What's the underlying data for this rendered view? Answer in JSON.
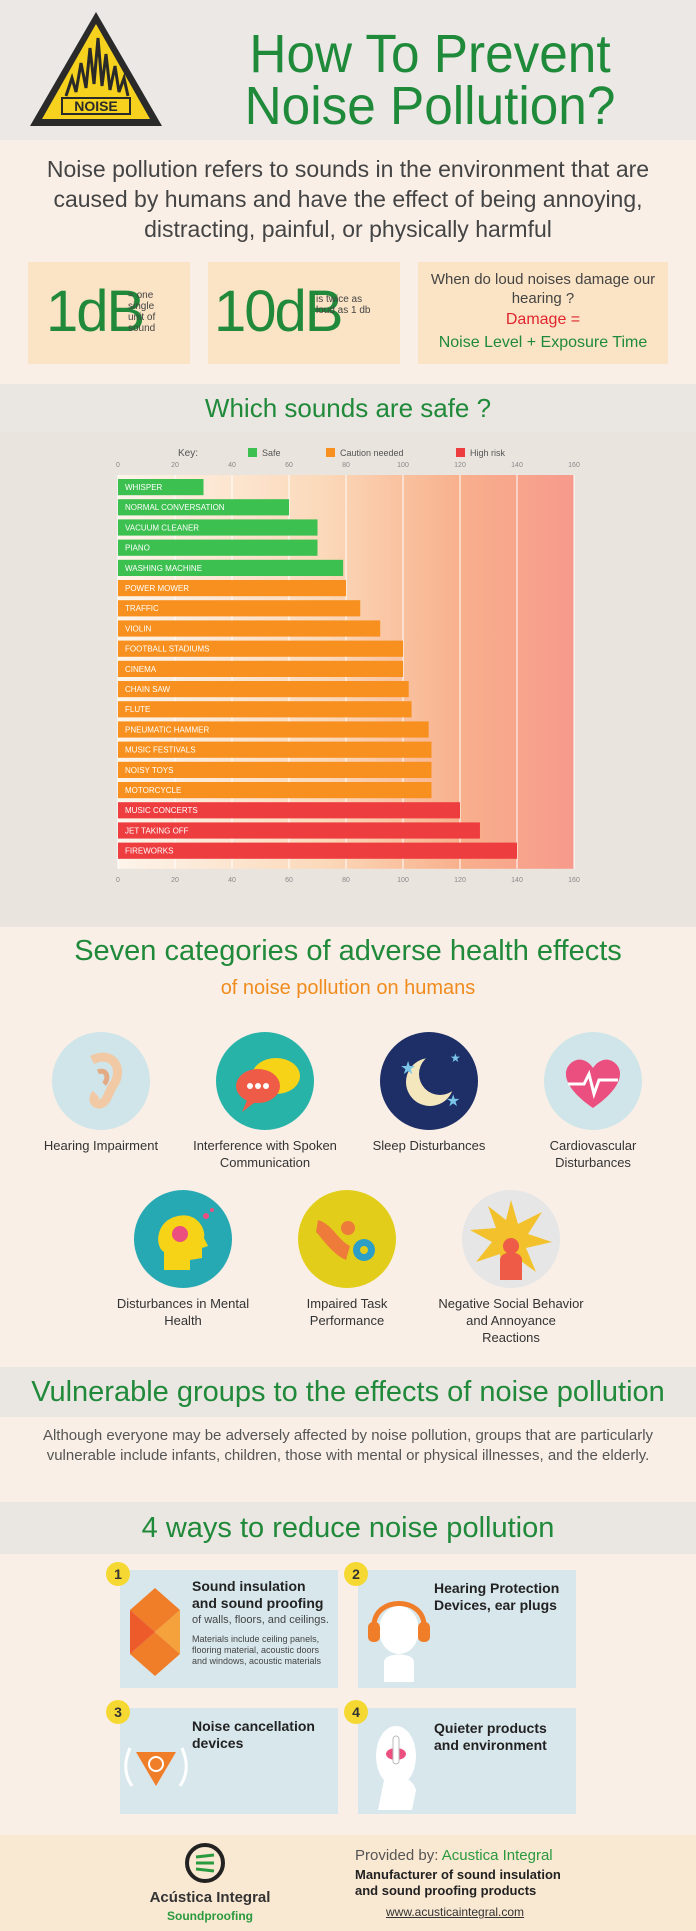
{
  "header": {
    "logo_text": "NOISE",
    "title_line1": "How To Prevent",
    "title_line2": "Noise Pollution?"
  },
  "intro": "Noise pollution refers to sounds in the environment that are caused by humans and have the effect of being annoying, distracting, painful, or physically harmful",
  "units": [
    {
      "big": "1dB",
      "small": "= one single unit of sound"
    },
    {
      "big": "10dB",
      "small": "is twice as loud as 1 db"
    }
  ],
  "damage": {
    "question": "When do loud noises damage our hearing ?",
    "eq": "Damage =",
    "formula": "Noise Level + Exposure Time"
  },
  "safe_title": "Which sounds are safe ?",
  "chart_data": {
    "type": "bar",
    "orientation": "horizontal",
    "key_label": "Key:",
    "legend": [
      {
        "name": "Safe",
        "color": "#3cc04f"
      },
      {
        "name": "Caution needed",
        "color": "#f7901e"
      },
      {
        "name": "High risk",
        "color": "#ee3d3f"
      }
    ],
    "xlim": [
      0,
      160
    ],
    "ticks": [
      "0",
      "20",
      "40",
      "60",
      "80",
      "100",
      "120",
      "140",
      "160"
    ],
    "categories": [
      "WHISPER",
      "NORMAL CONVERSATION",
      "VACUUM CLEANER",
      "PIANO",
      "WASHING MACHINE",
      "POWER MOWER",
      "TRAFFIC",
      "VIOLIN",
      "FOOTBALL STADIUMS",
      "CINEMA",
      "CHAIN SAW",
      "FLUTE",
      "PNEUMATIC HAMMER",
      "MUSIC FESTIVALS",
      "NOISY TOYS",
      "MOTORCYCLE",
      "MUSIC CONCERTS",
      "JET TAKING OFF",
      "FIREWORKS"
    ],
    "values": [
      30,
      60,
      70,
      70,
      79,
      80,
      85,
      92,
      100,
      100,
      102,
      103,
      109,
      110,
      110,
      110,
      120,
      127,
      140
    ],
    "risk": [
      "Safe",
      "Safe",
      "Safe",
      "Safe",
      "Safe",
      "Caution needed",
      "Caution needed",
      "Caution needed",
      "Caution needed",
      "Caution needed",
      "Caution needed",
      "Caution needed",
      "Caution needed",
      "Caution needed",
      "Caution needed",
      "Caution needed",
      "High risk",
      "High risk",
      "High risk"
    ]
  },
  "effects": {
    "title": "Seven categories of adverse health effects",
    "subtitle": "of noise pollution on humans",
    "items": [
      {
        "label": "Hearing Impairment",
        "icon": "ear-icon",
        "color": "#cfe5e9"
      },
      {
        "label": "Interference with Spoken Communication",
        "icon": "speech-bubbles-icon",
        "color": "#27b3a8"
      },
      {
        "label": "Sleep Disturbances",
        "icon": "moon-stars-icon",
        "color": "#1d2f66"
      },
      {
        "label": "Cardiovascular Disturbances",
        "icon": "heart-pulse-icon",
        "color": "#cfe5e9"
      },
      {
        "label": "Disturbances in Mental Health",
        "icon": "head-brain-icon",
        "color": "#27a9b3"
      },
      {
        "label": "Impaired Task Performance",
        "icon": "hand-gear-icon",
        "color": "#e2ce1a"
      },
      {
        "label": "Negative Social Behavior and Annoyance Reactions",
        "icon": "burst-person-icon",
        "color": "#e6e6e6"
      }
    ]
  },
  "vulnerable": {
    "title": "Vulnerable groups to the effects of noise pollution",
    "text": "Although everyone may be adversely affected by noise pollution, groups that are particularly vulnerable include infants, children, those with mental or physical illnesses, and the elderly."
  },
  "ways": {
    "title": "4 ways to reduce noise pollution",
    "items": [
      {
        "num": "1",
        "title": "Sound insulation and sound proofing",
        "sub": "of walls, floors, and ceilings.",
        "detail": "Materials include ceiling panels, flooring material, acoustic doors and windows, acoustic materials",
        "icon": "acoustic-foam-icon"
      },
      {
        "num": "2",
        "title": "Hearing Protection Devices, ear plugs",
        "icon": "headphones-icon"
      },
      {
        "num": "3",
        "title": "Noise cancellation devices",
        "icon": "noise-cancel-icon"
      },
      {
        "num": "4",
        "title": "Quieter products and environment",
        "icon": "shush-icon"
      }
    ]
  },
  "footer": {
    "brand": "Acústica Integral",
    "brand_sub": "Soundproofing",
    "provided_label": "Provided by:",
    "provided_name": "Acustica Integral",
    "tagline": "Manufacturer of sound insulation and sound  proofing products",
    "url": "www.acusticaintegral.com"
  }
}
